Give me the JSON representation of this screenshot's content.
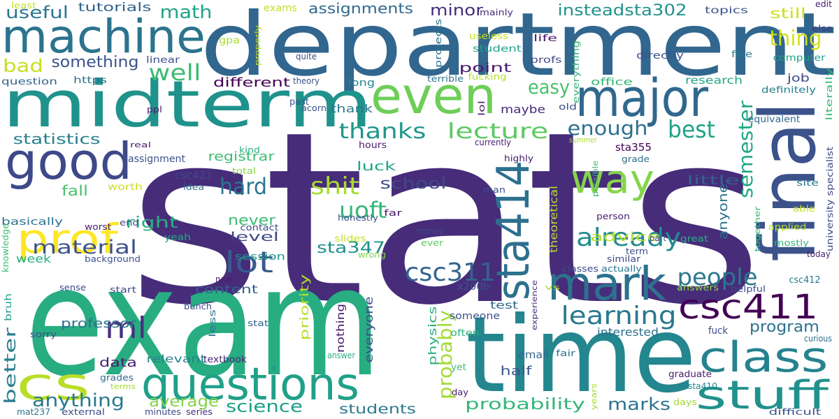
{
  "words": [
    {
      "text": "stats",
      "color": "#472c7a"
    },
    {
      "text": "exam",
      "color": "#27ad81"
    },
    {
      "text": "department",
      "color": "#31668e"
    },
    {
      "text": "midterm",
      "color": "#20928c"
    },
    {
      "text": "time",
      "color": "#24868e"
    },
    {
      "text": "final",
      "color": "#3b528b"
    },
    {
      "text": "questions",
      "color": "#1fa188"
    },
    {
      "text": "machine",
      "color": "#2c738e"
    },
    {
      "text": "even",
      "color": "#6ece58"
    },
    {
      "text": "major",
      "color": "#31688e"
    },
    {
      "text": "good",
      "color": "#3e4989"
    },
    {
      "text": "mark",
      "color": "#2c728e"
    },
    {
      "text": "sta414",
      "color": "#2d708e"
    },
    {
      "text": "csc411",
      "color": "#440154"
    },
    {
      "text": "class",
      "color": "#26828e"
    },
    {
      "text": "stuff",
      "color": "#21918c"
    },
    {
      "text": "prof",
      "color": "#fde725"
    },
    {
      "text": "cs",
      "color": "#bade28"
    },
    {
      "text": "way",
      "color": "#86d549"
    },
    {
      "text": "learning",
      "color": "#29798e"
    },
    {
      "text": "csc311",
      "color": "#33638d"
    },
    {
      "text": "people",
      "color": "#2a788e"
    },
    {
      "text": "already",
      "color": "#228c8d"
    },
    {
      "text": "lecture",
      "color": "#5ec962"
    },
    {
      "text": "thanks",
      "color": "#1f988b"
    },
    {
      "text": "best",
      "color": "#20a386"
    },
    {
      "text": "ml",
      "color": "#46327e"
    },
    {
      "text": "lot",
      "color": "#365c8d"
    },
    {
      "text": "shit",
      "color": "#a8db34"
    },
    {
      "text": "uoft",
      "color": "#35b779"
    },
    {
      "text": "hard",
      "color": "#2a768e"
    },
    {
      "text": "well",
      "color": "#3dbc74"
    },
    {
      "text": "easy",
      "color": "#4ac16d"
    },
    {
      "text": "enough",
      "color": "#2d708e"
    },
    {
      "text": "semester",
      "color": "#22a884"
    },
    {
      "text": "thing",
      "color": "#d2e21b"
    },
    {
      "text": "math",
      "color": "#20a486"
    },
    {
      "text": "useful",
      "color": "#2a778e"
    },
    {
      "text": "probably",
      "color": "#a5db36"
    },
    {
      "text": "probability",
      "color": "#35b779"
    },
    {
      "text": "material",
      "color": "#3b528b"
    },
    {
      "text": "anything",
      "color": "#29798e"
    },
    {
      "text": "science",
      "color": "#1f9f88"
    },
    {
      "text": "marks",
      "color": "#2c738e"
    },
    {
      "text": "program",
      "color": "#2d718e"
    },
    {
      "text": "better",
      "color": "#287c8e"
    },
    {
      "text": "average",
      "color": "#84d44b"
    },
    {
      "text": "students",
      "color": "#2a788e"
    },
    {
      "text": "something",
      "color": "#3b528b"
    },
    {
      "text": "bad",
      "color": "#c8e020"
    },
    {
      "text": "assignments",
      "color": "#30698e"
    },
    {
      "text": "minor",
      "color": "#472d7b"
    },
    {
      "text": "insteadsta302",
      "color": "#21918c"
    },
    {
      "text": "still",
      "color": "#cde11d"
    },
    {
      "text": "statistics",
      "color": "#26828e"
    },
    {
      "text": "tutorials",
      "color": "#33638d"
    },
    {
      "text": "exams",
      "color": "#c0df25"
    },
    {
      "text": "right",
      "color": "#2ab07f"
    },
    {
      "text": "fall",
      "color": "#4ac16d"
    },
    {
      "text": "school",
      "color": "#3e4a89"
    },
    {
      "text": "sta347",
      "color": "#21918c"
    },
    {
      "text": "level",
      "color": "#3f4788"
    },
    {
      "text": "never",
      "color": "#3dbc74"
    },
    {
      "text": "luck",
      "color": "#22a785"
    },
    {
      "text": "advice",
      "color": "#b5de2b"
    },
    {
      "text": "point",
      "color": "#481b6d"
    },
    {
      "text": "different",
      "color": "#440154"
    },
    {
      "text": "registrar",
      "color": "#3dbc74"
    },
    {
      "text": "little",
      "color": "#33638d"
    },
    {
      "text": "anyone",
      "color": "#2a778e"
    },
    {
      "text": "content",
      "color": "#34608d"
    },
    {
      "text": "priority",
      "color": "#b5de2b"
    },
    {
      "text": "professor",
      "color": "#2c728e"
    },
    {
      "text": "interested",
      "color": "#2d708e"
    },
    {
      "text": "data",
      "color": "#481f70"
    },
    {
      "text": "half",
      "color": "#39568c"
    },
    {
      "text": "thank",
      "color": "#2a768e"
    },
    {
      "text": "maybe",
      "color": "#472a7a"
    },
    {
      "text": "session",
      "color": "#21918c"
    },
    {
      "text": "week",
      "color": "#29af7f"
    },
    {
      "text": "job",
      "color": "#3e4a89"
    },
    {
      "text": "physics",
      "color": "#29af7f"
    },
    {
      "text": "everyone",
      "color": "#3e4a89"
    },
    {
      "text": "test",
      "color": "#31688e"
    },
    {
      "text": "email",
      "color": "#31688e"
    },
    {
      "text": "nothing",
      "color": "#481769"
    },
    {
      "text": "csc421",
      "color": "#3e4a89"
    },
    {
      "text": "sta355",
      "color": "#440154"
    },
    {
      "text": "x200b",
      "color": "#3b528b"
    },
    {
      "text": "research",
      "color": "#22a785"
    },
    {
      "text": "theoretical",
      "color": "#b5de2b"
    },
    {
      "text": "someone",
      "color": "#3b528b"
    },
    {
      "text": "assignment",
      "color": "#3b528b"
    },
    {
      "text": "relevant",
      "color": "#26828e"
    },
    {
      "text": "textbook",
      "color": "#482878"
    },
    {
      "text": "basically",
      "color": "#2c738e"
    },
    {
      "text": "yeah",
      "color": "#22a785"
    },
    {
      "text": "office",
      "color": "#35b779"
    },
    {
      "text": "long",
      "color": "#24868e"
    },
    {
      "text": "https",
      "color": "#2c728e"
    },
    {
      "text": "question",
      "color": "#33638d"
    },
    {
      "text": "past",
      "color": "#3b528b"
    },
    {
      "text": "hours",
      "color": "#481b6d"
    },
    {
      "text": "yet",
      "color": "#3dbc74"
    },
    {
      "text": "often",
      "color": "#2ab07f"
    },
    {
      "text": "bruh",
      "color": "#1fa188"
    },
    {
      "text": "knowledge",
      "color": "#3dbc74"
    },
    {
      "text": "wrong",
      "color": "#84d44b"
    },
    {
      "text": "slides",
      "color": "#c8e020"
    },
    {
      "text": "ever",
      "color": "#5ec962"
    },
    {
      "text": "fuck",
      "color": "#3e4a89"
    },
    {
      "text": "helpful",
      "color": "#3e4a89"
    },
    {
      "text": "csc412",
      "color": "#2a788e"
    },
    {
      "text": "curious",
      "color": "#2d708e"
    },
    {
      "text": "graduate",
      "color": "#481b6d"
    },
    {
      "text": "sta410",
      "color": "#24868e"
    },
    {
      "text": "days",
      "color": "#a0da39"
    },
    {
      "text": "difficult",
      "color": "#3b528b"
    },
    {
      "text": "answers",
      "color": "#8bd646"
    },
    {
      "text": "mostly",
      "color": "#35b779"
    },
    {
      "text": "today",
      "color": "#481f70"
    },
    {
      "text": "university specialist",
      "color": "#3e4a89"
    },
    {
      "text": "applied",
      "color": "#b5de2b"
    },
    {
      "text": "site",
      "color": "#2a788e"
    },
    {
      "text": "able",
      "color": "#c8e020"
    },
    {
      "text": "equivalent",
      "color": "#31688e"
    },
    {
      "text": "definitely",
      "color": "#26828e"
    },
    {
      "text": "literally",
      "color": "#35b779"
    },
    {
      "text": "fine",
      "color": "#2a788e"
    },
    {
      "text": "else",
      "color": "#46327e"
    },
    {
      "text": "edit",
      "color": "#481b6d"
    },
    {
      "text": "topics",
      "color": "#3b528b"
    },
    {
      "text": "computer",
      "color": "#1fa188"
    },
    {
      "text": "directly",
      "color": "#3b528b"
    },
    {
      "text": "life",
      "color": "#481b6d"
    },
    {
      "text": "profs",
      "color": "#3e4a89"
    },
    {
      "text": "everything",
      "color": "#35b779"
    },
    {
      "text": "mainly",
      "color": "#472d7b"
    },
    {
      "text": "useless",
      "color": "#c8e020"
    },
    {
      "text": "student",
      "color": "#1fa188"
    },
    {
      "text": "projects",
      "color": "#2c728e"
    },
    {
      "text": "gpa",
      "color": "#a8db34"
    },
    {
      "text": "properly",
      "color": "#c8e020"
    },
    {
      "text": "linear",
      "color": "#3b528b"
    },
    {
      "text": "quite",
      "color": "#3e4a89"
    },
    {
      "text": "theory",
      "color": "#3b528b"
    },
    {
      "text": "acorn",
      "color": "#3b528b"
    },
    {
      "text": "terrible",
      "color": "#2c738e"
    },
    {
      "text": "fucking",
      "color": "#b5de2b"
    },
    {
      "text": "lol",
      "color": "#481b6d"
    },
    {
      "text": "old",
      "color": "#3e4a89"
    },
    {
      "text": "currently",
      "color": "#481b6d"
    },
    {
      "text": "highly",
      "color": "#481b6d"
    },
    {
      "text": "summer",
      "color": "#a8db34"
    },
    {
      "text": "grade",
      "color": "#2d708e"
    },
    {
      "text": "possible",
      "color": "#35b779"
    },
    {
      "text": "ppl",
      "color": "#481b6d"
    },
    {
      "text": "real",
      "color": "#481b6d"
    },
    {
      "text": "kind",
      "color": "#2ab07f"
    },
    {
      "text": "total",
      "color": "#84d44b"
    },
    {
      "text": "idea",
      "color": "#2c728e"
    },
    {
      "text": "worth",
      "color": "#c8e020"
    },
    {
      "text": "worst",
      "color": "#481b6d"
    },
    {
      "text": "end",
      "color": "#3e4a89"
    },
    {
      "text": "honestly",
      "color": "#3b528b"
    },
    {
      "text": "far",
      "color": "#481b6d"
    },
    {
      "text": "man",
      "color": "#3b528b"
    },
    {
      "text": "person",
      "color": "#481b6d"
    },
    {
      "text": "contact",
      "color": "#3e4a89"
    },
    {
      "text": "money",
      "color": "#3e4a89"
    },
    {
      "text": "part",
      "color": "#3e4a89"
    },
    {
      "text": "great",
      "color": "#2ab07f"
    },
    {
      "text": "together",
      "color": "#35b779"
    },
    {
      "text": "term",
      "color": "#3b528b"
    },
    {
      "text": "similar",
      "color": "#3e4a89"
    },
    {
      "text": "background",
      "color": "#3b528b"
    },
    {
      "text": "new",
      "color": "#481b6d"
    },
    {
      "text": "start",
      "color": "#3e4a89"
    },
    {
      "text": "sense",
      "color": "#3e4a89"
    },
    {
      "text": "bunch",
      "color": "#3e4a89"
    },
    {
      "text": "sorry",
      "color": "#3e4a89"
    },
    {
      "text": "stat",
      "color": "#31688e"
    },
    {
      "text": "less",
      "color": "#2c728e"
    },
    {
      "text": "answer",
      "color": "#2ab07f"
    },
    {
      "text": "fair",
      "color": "#2c738e"
    },
    {
      "text": "years",
      "color": "#a8db34"
    },
    {
      "text": "vs",
      "color": "#a8db34"
    },
    {
      "text": "classes",
      "color": "#3e4a89"
    },
    {
      "text": "actually",
      "color": "#2a788e"
    },
    {
      "text": "experience",
      "color": "#472d7b"
    },
    {
      "text": "day",
      "color": "#481b6d"
    },
    {
      "text": "grades",
      "color": "#31688e"
    },
    {
      "text": "terms",
      "color": "#a8db34"
    },
    {
      "text": "mat237",
      "color": "#2c728e"
    },
    {
      "text": "external",
      "color": "#3e4a89"
    },
    {
      "text": "minutes",
      "color": "#3e4a89"
    },
    {
      "text": "series",
      "color": "#472d7b"
    },
    {
      "text": "least",
      "color": "#c8e020"
    }
  ]
}
